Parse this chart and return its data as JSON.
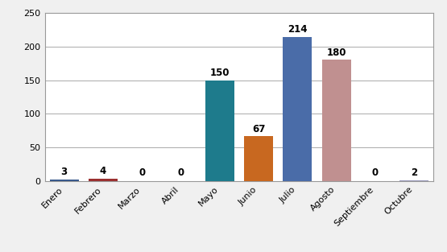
{
  "categories": [
    "Enero",
    "Febrero",
    "Marzo",
    "Abril",
    "Mayo",
    "Junio",
    "Julio",
    "Agosto",
    "Septiembre",
    "Octubre"
  ],
  "values": [
    3,
    4,
    0,
    0,
    150,
    67,
    214,
    180,
    0,
    2
  ],
  "bar_colors": [
    "#3A5A8C",
    "#9B3030",
    "#6B7B30",
    "#6B4A8A",
    "#1E7B8C",
    "#C86820",
    "#4A6CA8",
    "#C09090",
    "#8A9A60",
    "#9898B8"
  ],
  "ylim": [
    0,
    250
  ],
  "yticks": [
    0,
    50,
    100,
    150,
    200,
    250
  ],
  "background_color": "#F0F0F0",
  "plot_bg_color": "#FFFFFF",
  "grid_color": "#AAAAAA",
  "label_fontsize": 8.5,
  "tick_fontsize": 8,
  "bar_width": 0.75,
  "figure_border_color": "#999999"
}
